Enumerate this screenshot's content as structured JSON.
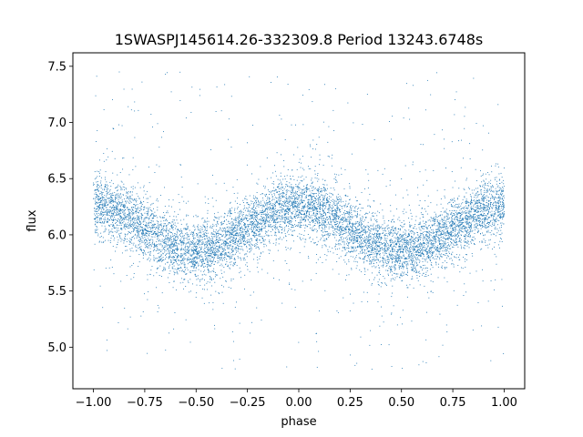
{
  "chart_data": {
    "type": "scatter",
    "title": "1SWASPJ145614.26-332309.8 Period 13243.6748s",
    "xlabel": "phase",
    "ylabel": "flux",
    "xlim": [
      -1.1,
      1.1
    ],
    "ylim": [
      4.63,
      7.62
    ],
    "xticks": [
      -1.0,
      -0.75,
      -0.5,
      -0.25,
      0.0,
      0.25,
      0.5,
      0.75,
      1.0
    ],
    "xtick_labels": [
      "−1.00",
      "−0.75",
      "−0.50",
      "−0.25",
      "0.00",
      "0.25",
      "0.50",
      "0.75",
      "1.00"
    ],
    "yticks": [
      5.0,
      5.5,
      6.0,
      6.5,
      7.0,
      7.5
    ],
    "ytick_labels": [
      "5.0",
      "5.5",
      "6.0",
      "6.5",
      "7.0",
      "7.5"
    ],
    "grid": false,
    "legend": "none",
    "point_color": "#1f77b4",
    "series": [
      {
        "model": "phase-folded light curve, ~2 cycles over phase -1 to 1",
        "mean_flux": 6.06,
        "amplitude": 0.2,
        "maxima_phase": [
          -1.0,
          0.0,
          1.0
        ],
        "minima_phase": [
          -0.5,
          0.5
        ],
        "core_scatter_sd": 0.13,
        "outlier_range": [
          4.8,
          7.5
        ],
        "points_x": [
          -1.0,
          -0.75,
          -0.5,
          -0.25,
          0.0,
          0.25,
          0.5,
          0.75,
          1.0
        ],
        "points_y": [
          6.26,
          6.1,
          5.86,
          6.06,
          6.26,
          6.12,
          5.86,
          6.06,
          6.26
        ]
      }
    ]
  }
}
